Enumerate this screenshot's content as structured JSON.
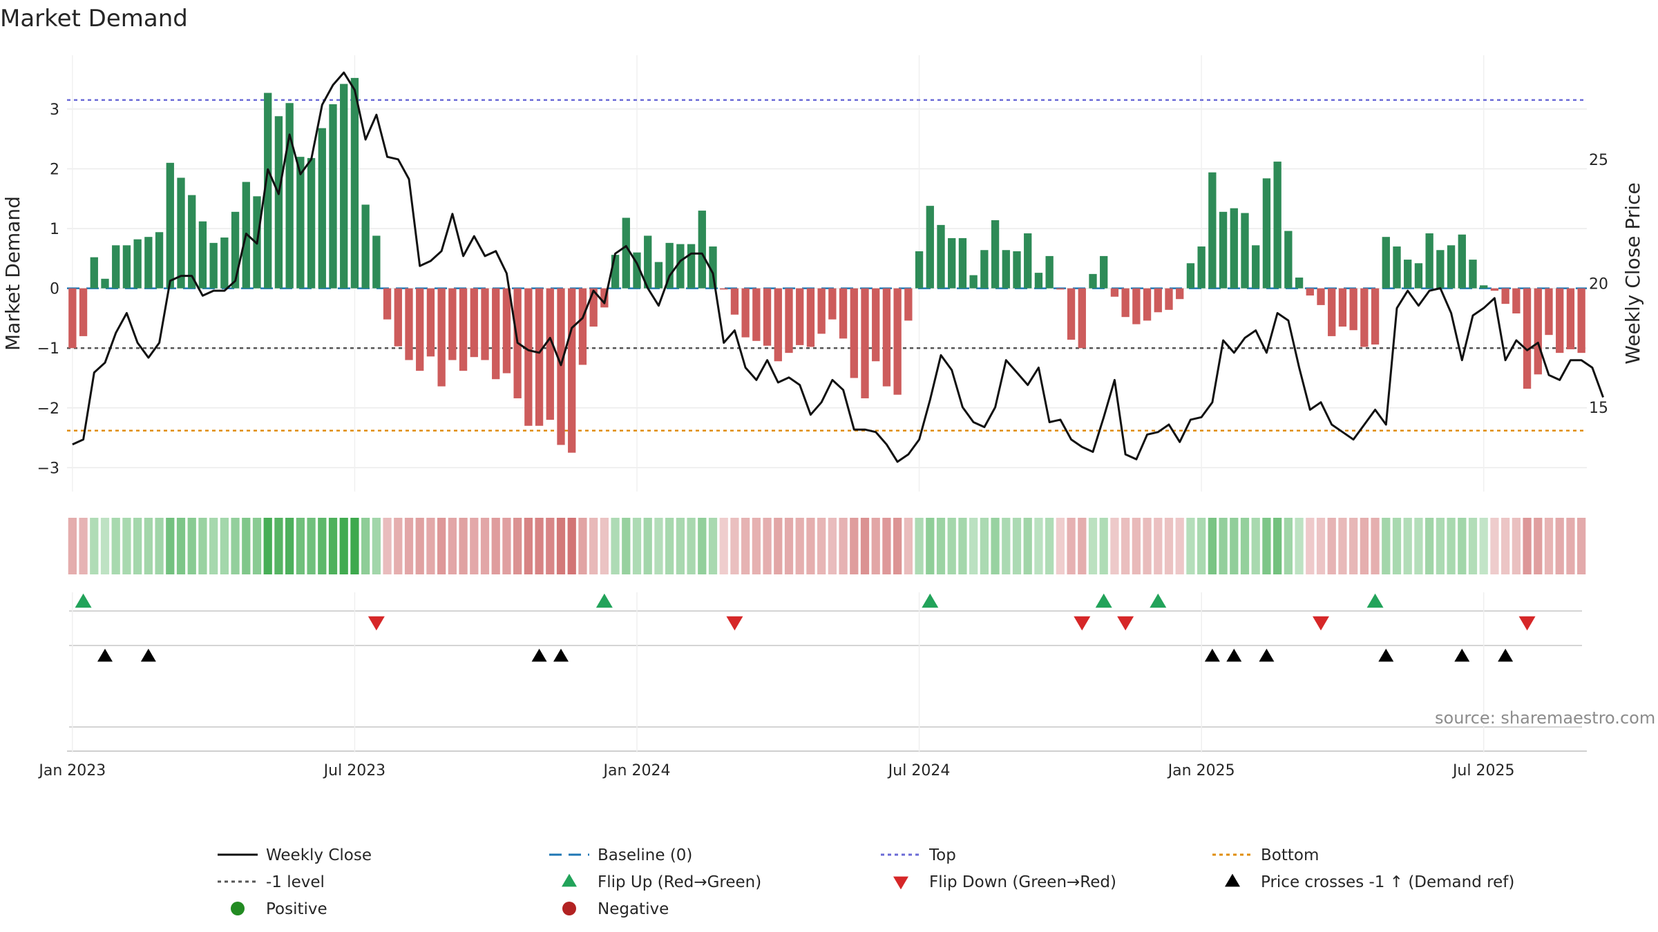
{
  "chart_data": {
    "type": "bar",
    "title": "Market Demand",
    "source": "source: sharemaestro.com",
    "left_axis": {
      "label": "Market Demand",
      "ylim": [
        -3.4,
        3.9
      ],
      "ticks": [
        3,
        2,
        1,
        0,
        -1,
        -2,
        -3
      ],
      "tick_labels": [
        "3",
        "2",
        "1",
        "0",
        "−1",
        "−2",
        "−3"
      ]
    },
    "right_axis": {
      "label": "Weekly Close Price",
      "ylim": [
        11.6,
        29.2
      ],
      "ticks": [
        25,
        20,
        15
      ],
      "tick_labels": [
        "25",
        "20",
        "15"
      ]
    },
    "x_ticks": [
      {
        "week": 1,
        "label": "Jan 2023"
      },
      {
        "week": 27,
        "label": "Jul 2023"
      },
      {
        "week": 53,
        "label": "Jan 2024"
      },
      {
        "week": 79,
        "label": "Jul 2024"
      },
      {
        "week": 105,
        "label": "Jan 2025"
      },
      {
        "week": 131,
        "label": "Jul 2025"
      }
    ],
    "reference_lines": {
      "baseline": 0,
      "minus_one": -1,
      "top": 3.15,
      "bottom": -2.38
    },
    "colors": {
      "positive": "#2e8b57",
      "negative": "#cd5c5c",
      "price": "#111111",
      "baseline": "#1f77b4",
      "top": "#6a6ad6",
      "bottom": "#e08e0b",
      "minus_one": "#555555",
      "flip_up": "#22a35a",
      "flip_down": "#d62728",
      "cross": "#000000",
      "dot_positive": "#228b22",
      "dot_negative": "#b22222"
    },
    "demand": [
      -1.0,
      -0.8,
      0.52,
      0.16,
      0.72,
      0.72,
      0.82,
      0.86,
      0.94,
      2.1,
      1.85,
      1.56,
      1.12,
      0.76,
      0.85,
      1.28,
      1.78,
      1.54,
      3.27,
      2.88,
      3.1,
      2.2,
      2.18,
      2.68,
      3.08,
      3.42,
      3.52,
      1.4,
      0.88,
      -0.52,
      -0.97,
      -1.2,
      -1.38,
      -1.14,
      -1.64,
      -1.2,
      -1.38,
      -1.15,
      -1.2,
      -1.52,
      -1.42,
      -1.84,
      -2.3,
      -2.3,
      -2.2,
      -2.62,
      -2.75,
      -1.28,
      -0.64,
      -0.32,
      0.56,
      1.18,
      0.6,
      0.88,
      0.44,
      0.76,
      0.74,
      0.74,
      1.3,
      0.7,
      -0.02,
      -0.44,
      -0.82,
      -0.88,
      -0.96,
      -1.22,
      -1.08,
      -0.95,
      -0.98,
      -0.76,
      -0.52,
      -0.84,
      -1.5,
      -1.84,
      -1.22,
      -1.64,
      -1.78,
      -0.54,
      0.62,
      1.38,
      1.06,
      0.84,
      0.84,
      0.22,
      0.64,
      1.14,
      0.64,
      0.62,
      0.92,
      0.26,
      0.54,
      -0.02,
      -0.86,
      -1.0,
      0.24,
      0.54,
      -0.14,
      -0.48,
      -0.6,
      -0.54,
      -0.4,
      -0.36,
      -0.18,
      0.42,
      0.7,
      1.94,
      1.28,
      1.34,
      1.26,
      0.72,
      1.84,
      2.12,
      0.96,
      0.18,
      -0.12,
      -0.28,
      -0.8,
      -0.64,
      -0.7,
      -0.98,
      -0.94,
      0.86,
      0.7,
      0.48,
      0.42,
      0.92,
      0.64,
      0.72,
      0.9,
      0.48,
      0.05,
      -0.04,
      -0.26,
      -0.42,
      -1.68,
      -1.44,
      -0.78,
      -1.08,
      -1.02,
      -1.08
    ],
    "price": [
      13.5,
      13.7,
      16.4,
      16.8,
      18.0,
      18.8,
      17.6,
      17.0,
      17.6,
      20.1,
      20.3,
      20.3,
      19.5,
      19.7,
      19.7,
      20.1,
      22.0,
      21.6,
      24.6,
      23.6,
      26.0,
      24.4,
      25.0,
      27.2,
      28.0,
      28.5,
      27.8,
      25.8,
      26.8,
      25.1,
      25.0,
      24.2,
      20.7,
      20.9,
      21.3,
      22.8,
      21.1,
      21.9,
      21.1,
      21.3,
      20.4,
      17.6,
      17.3,
      17.2,
      17.8,
      16.7,
      18.2,
      18.6,
      19.7,
      19.2,
      21.2,
      21.5,
      20.8,
      19.8,
      19.1,
      20.3,
      20.9,
      21.2,
      21.2,
      20.4,
      17.6,
      18.1,
      16.6,
      16.1,
      16.9,
      16.0,
      16.2,
      15.9,
      14.7,
      15.2,
      16.1,
      15.7,
      14.1,
      14.1,
      14.0,
      13.5,
      12.8,
      13.1,
      13.7,
      15.3,
      17.1,
      16.5,
      15.0,
      14.4,
      14.2,
      15.0,
      16.9,
      16.4,
      15.9,
      16.6,
      14.4,
      14.5,
      13.7,
      13.4,
      13.2,
      14.6,
      16.1,
      13.1,
      12.9,
      13.9,
      14.0,
      14.3,
      13.6,
      14.5,
      14.6,
      15.2,
      17.7,
      17.2,
      17.8,
      18.1,
      17.2,
      18.8,
      18.5,
      16.6,
      14.9,
      15.2,
      14.3,
      14.0,
      13.7,
      14.3,
      14.9,
      14.3,
      19.0,
      19.7,
      19.1,
      19.7,
      19.8,
      18.8,
      16.9,
      18.7,
      19.0,
      19.4,
      16.9,
      17.7,
      17.3,
      17.6,
      16.3,
      16.1,
      16.9,
      16.9,
      16.6,
      15.4
    ],
    "flip_up_weeks": [
      2,
      50,
      80,
      96,
      101,
      121
    ],
    "flip_down_weeks": [
      29,
      62,
      94,
      98,
      116,
      135
    ],
    "price_cross_weeks": [
      4,
      8,
      44,
      46,
      106,
      108,
      111,
      122,
      129,
      133
    ],
    "legend": {
      "weekly_close": "Weekly Close",
      "baseline": "Baseline (0)",
      "top": "Top",
      "bottom": "Bottom",
      "minus_one": "-1 level",
      "flip_up": "Flip Up (Red→Green)",
      "flip_down": "Flip Down (Green→Red)",
      "price_cross": "Price crosses -1 ↑ (Demand ref)",
      "positive": "Positive",
      "negative": "Negative"
    }
  }
}
